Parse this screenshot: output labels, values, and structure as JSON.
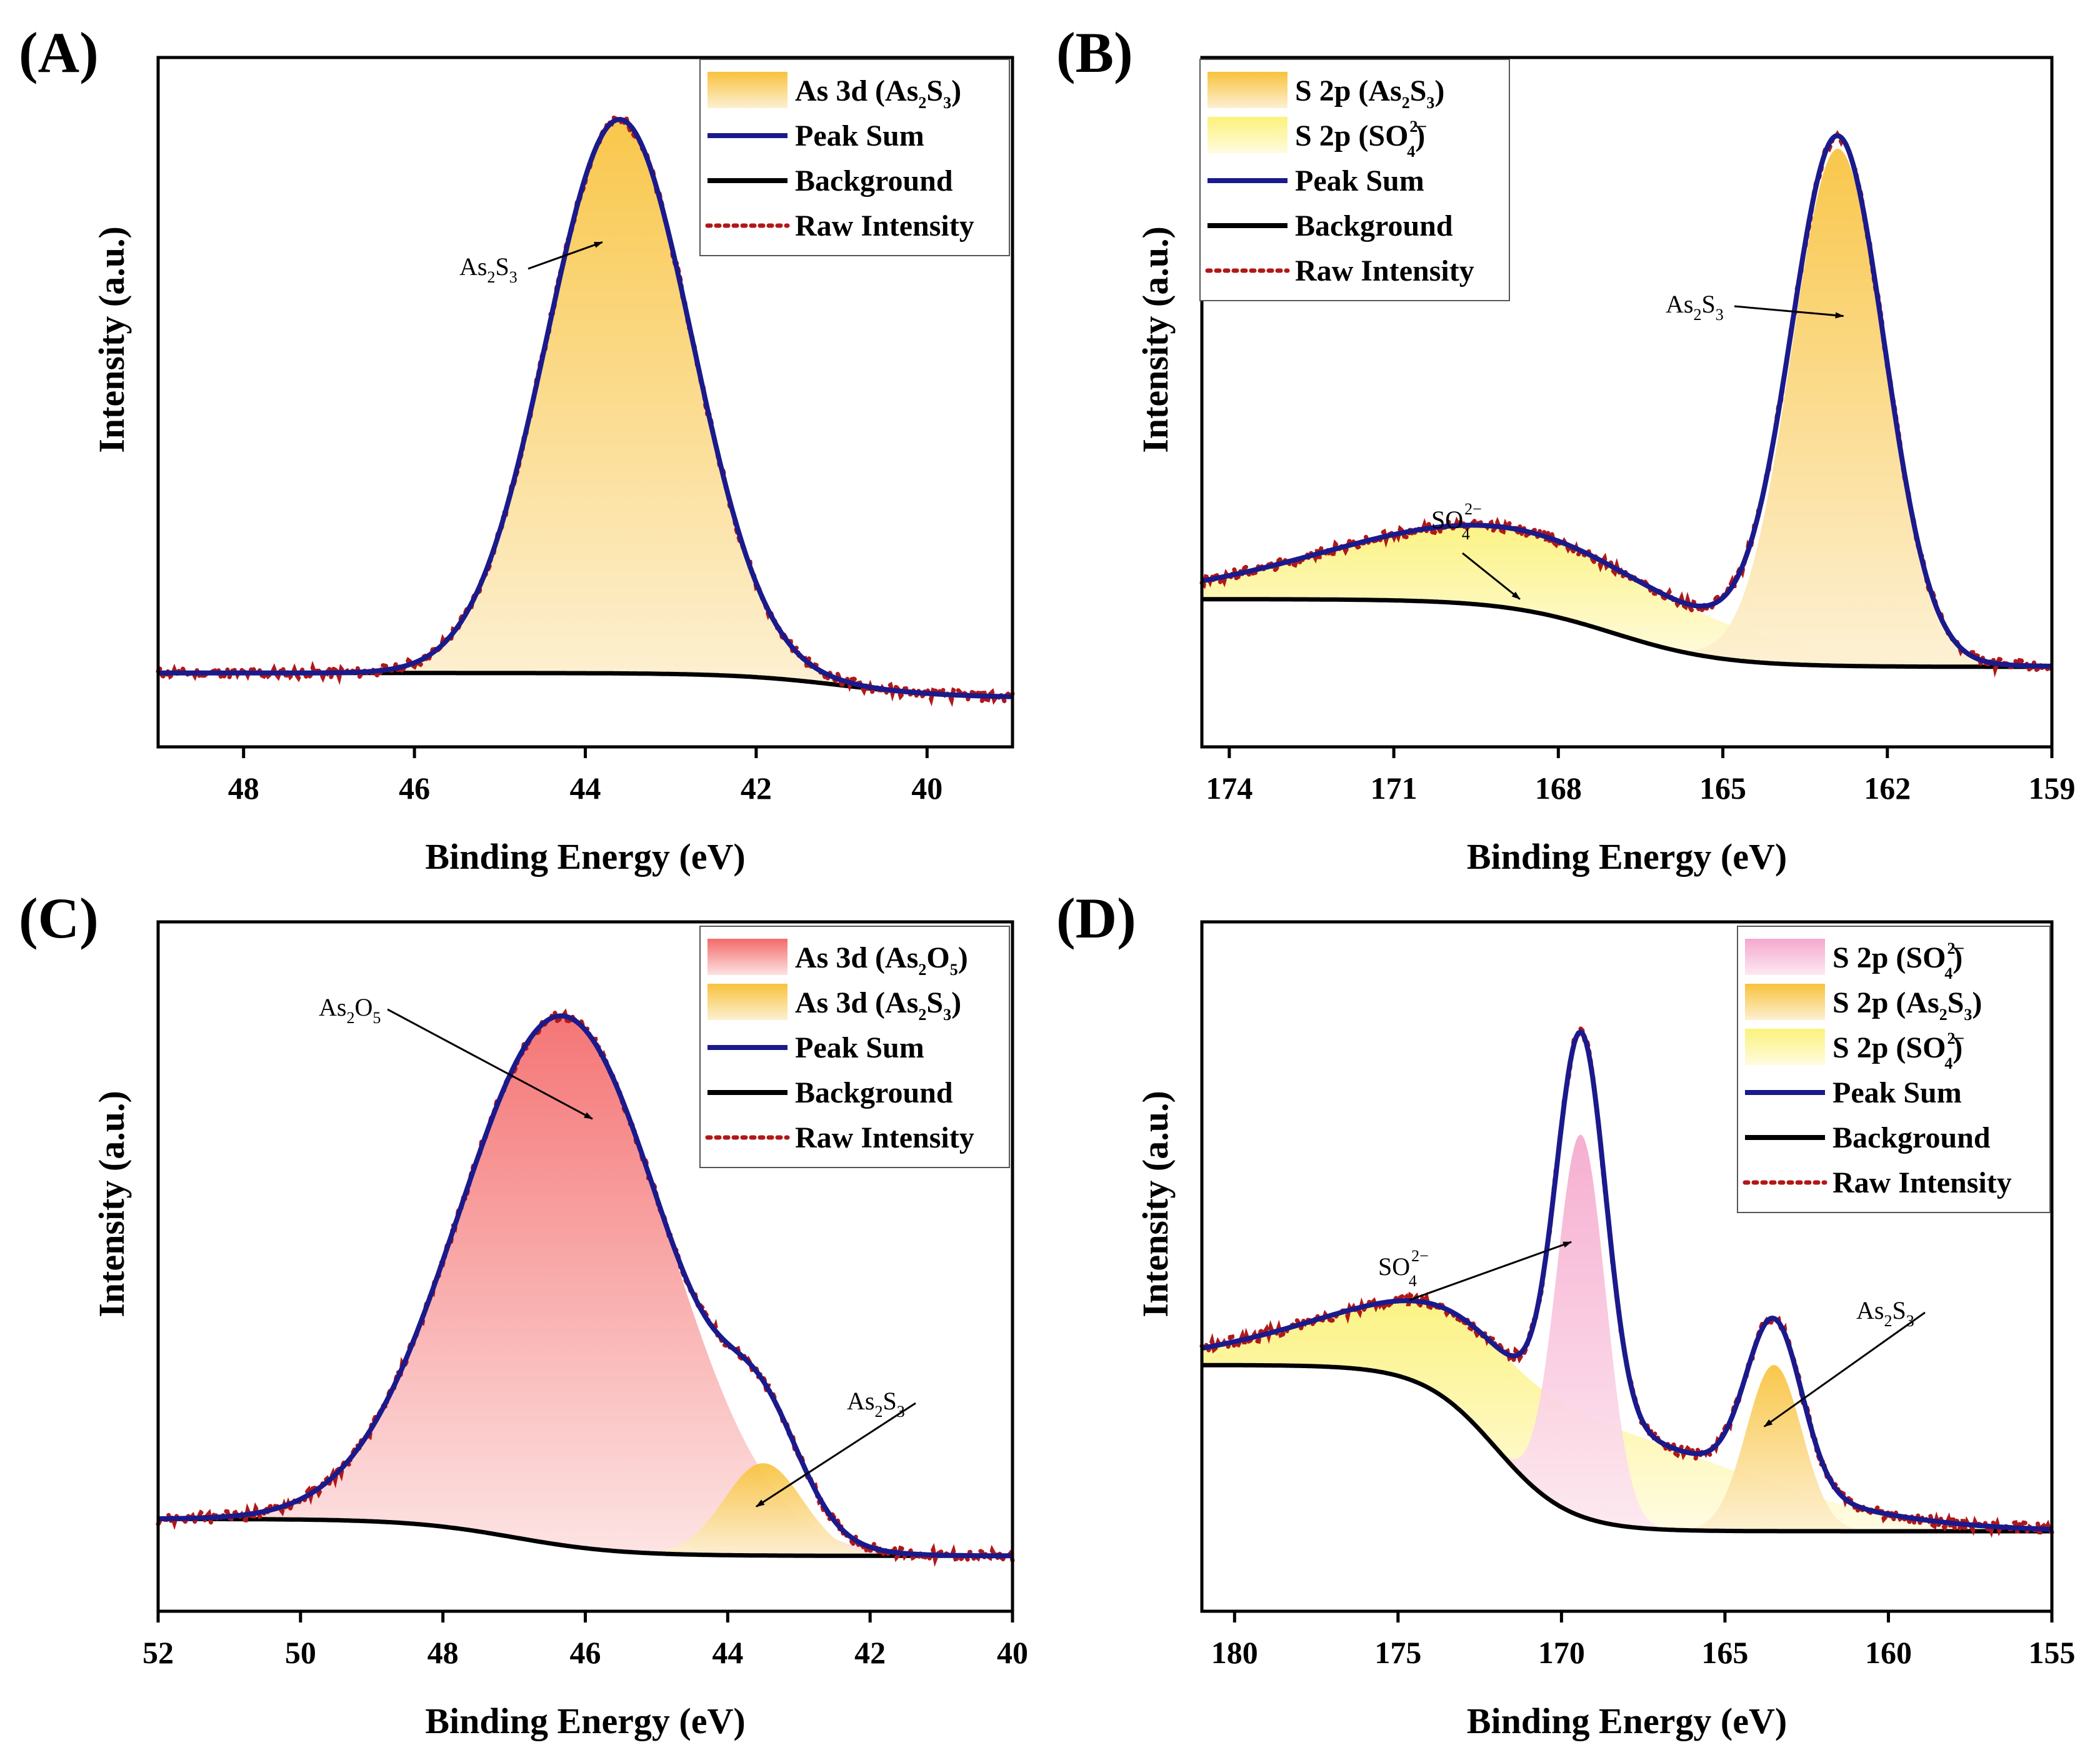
{
  "figure": {
    "panels": [
      "A",
      "B",
      "C",
      "D"
    ]
  },
  "colors": {
    "peak_sum": "#1a1a8c",
    "background": "#000000",
    "raw": "#b01818",
    "as2s3_top": "#f8c23c",
    "as2s3_bottom": "#fdf0d2",
    "so4_top": "#fbf27a",
    "so4_bottom": "#fffbe0",
    "as2o5_top": "#f46a6a",
    "as2o5_bottom": "#fde2e2",
    "so4_pink_top": "#f5a8cc",
    "so4_pink_bottom": "#fde8f2"
  },
  "chart_data": [
    {
      "panel": "A",
      "label": "(A)",
      "type": "line",
      "xlabel": "Binding Energy (eV)",
      "ylabel": "Intensity (a.u.)",
      "xlim": [
        49,
        39
      ],
      "ylim": [
        0,
        1.12
      ],
      "xticks": [
        48,
        46,
        44,
        42,
        40
      ],
      "background": {
        "y_left": 0.12,
        "y_right": 0.08,
        "x_center": 41,
        "width": 2.5
      },
      "components": [
        {
          "name": "As 3d (As2S3)",
          "center": 43.6,
          "height": 0.9,
          "width": 0.85,
          "fill": "as2s3"
        }
      ],
      "legend": [
        {
          "kind": "fill",
          "fill": "as2s3",
          "text": "As 3d (As",
          "sub1": "2",
          "mid": "S",
          "sub2": "3",
          "end": ")"
        },
        {
          "kind": "line",
          "style": "peak_sum",
          "text": "Peak Sum"
        },
        {
          "kind": "line",
          "style": "background",
          "text": "Background"
        },
        {
          "kind": "line",
          "style": "raw",
          "text": "Raw Intensity"
        }
      ],
      "annotations": [
        {
          "text": "As",
          "sub1": "2",
          "mid": "S",
          "sub2": "3",
          "end": "",
          "target_x": 43.8,
          "target_y": 0.82
        }
      ]
    },
    {
      "panel": "B",
      "label": "(B)",
      "type": "line",
      "xlabel": "Binding Energy (eV)",
      "ylabel": "Intensity (a.u.)",
      "xlim": [
        174.5,
        159
      ],
      "ylim": [
        0,
        1.12
      ],
      "xticks": [
        174,
        171,
        168,
        165,
        162,
        159
      ],
      "background": {
        "y_left": 0.24,
        "y_right": 0.13,
        "x_center": 167,
        "width": 4
      },
      "components": [
        {
          "name": "S 2p (SO4 2-)",
          "center": 169.0,
          "height": 0.13,
          "width": 3.2,
          "fill": "so4"
        },
        {
          "name": "S 2p (As2S3)",
          "center": 162.9,
          "height": 0.84,
          "width": 0.85,
          "fill": "as2s3"
        }
      ],
      "legend": [
        {
          "kind": "fill",
          "fill": "as2s3",
          "text": "S 2p (As",
          "sub1": "2",
          "mid": "S",
          "sub2": "3",
          "end": ")"
        },
        {
          "kind": "fill",
          "fill": "so4",
          "text": "S 2p (SO",
          "sub1": "4",
          "sup": "2−",
          "end": ")"
        },
        {
          "kind": "line",
          "style": "peak_sum",
          "text": "Peak Sum"
        },
        {
          "kind": "line",
          "style": "background",
          "text": "Background"
        },
        {
          "kind": "line",
          "style": "raw",
          "text": "Raw Intensity"
        }
      ],
      "annotations": [
        {
          "text": "As",
          "sub1": "2",
          "mid": "S",
          "sub2": "3",
          "end": "",
          "target_x": 162.8,
          "target_y": 0.7
        },
        {
          "text": "SO",
          "sub1": "4",
          "sup": "2−",
          "target_x": 168.7,
          "target_y": 0.24
        }
      ]
    },
    {
      "panel": "C",
      "label": "(C)",
      "type": "line",
      "xlabel": "Binding Energy (eV)",
      "ylabel": "Intensity (a.u.)",
      "xlim": [
        52,
        40
      ],
      "ylim": [
        0,
        1.12
      ],
      "xticks": [
        52,
        50,
        48,
        46,
        44,
        42,
        40
      ],
      "background": {
        "y_left": 0.15,
        "y_right": 0.09,
        "x_center": 47,
        "width": 3
      },
      "components": [
        {
          "name": "As 3d (As2O5)",
          "center": 46.3,
          "height": 0.86,
          "width": 1.45,
          "fill": "as2o5"
        },
        {
          "name": "As 3d (As2S3)",
          "center": 43.5,
          "height": 0.15,
          "width": 0.55,
          "fill": "as2s3"
        }
      ],
      "legend": [
        {
          "kind": "fill",
          "fill": "as2o5",
          "text": "As 3d (As",
          "sub1": "2",
          "mid": "O",
          "sub2": "5",
          "end": ")"
        },
        {
          "kind": "fill",
          "fill": "as2s3",
          "text": "As 3d (As",
          "sub1": "2",
          "mid": "S",
          "sub2": "3",
          "end": ")"
        },
        {
          "kind": "line",
          "style": "peak_sum",
          "text": "Peak Sum"
        },
        {
          "kind": "line",
          "style": "background",
          "text": "Background"
        },
        {
          "kind": "line",
          "style": "raw",
          "text": "Raw Intensity"
        }
      ],
      "annotations": [
        {
          "text": "As",
          "sub1": "2",
          "mid": "O",
          "sub2": "5",
          "end": "",
          "target_x": 45.9,
          "target_y": 0.8
        },
        {
          "text": "As",
          "sub1": "2",
          "mid": "S",
          "sub2": "3",
          "end": "",
          "target_x": 43.6,
          "target_y": 0.17
        }
      ]
    },
    {
      "panel": "D",
      "label": "(D)",
      "type": "line",
      "xlabel": "Binding Energy (eV)",
      "ylabel": "Intensity (a.u.)",
      "xlim": [
        181,
        155
      ],
      "ylim": [
        0,
        1.12
      ],
      "xticks": [
        180,
        175,
        170,
        165,
        160,
        155
      ],
      "background": {
        "y_left": 0.4,
        "y_right": 0.13,
        "x_center": 172,
        "width": 4.5
      },
      "components": [
        {
          "name": "S 2p (SO4 2-) broad",
          "center": 170.5,
          "height": 0.17,
          "width": 5.5,
          "fill": "so4"
        },
        {
          "name": "S 2p (SO4 2-)",
          "center": 169.4,
          "height": 0.62,
          "width": 0.75,
          "fill": "so4_pink"
        },
        {
          "name": "S 2p (As2S3)",
          "center": 163.5,
          "height": 0.27,
          "width": 0.85,
          "fill": "as2s3"
        }
      ],
      "legend": [
        {
          "kind": "fill",
          "fill": "so4_pink",
          "text": "S 2p (SO",
          "sub1": "4",
          "sup": "2−",
          "end": ")"
        },
        {
          "kind": "fill",
          "fill": "as2s3",
          "text": "S 2p (As",
          "sub1": "2",
          "mid": "S",
          "sub2": "3",
          "end": ")"
        },
        {
          "kind": "fill",
          "fill": "so4",
          "text": "S 2p (SO",
          "sub1": "4",
          "sup": "2−",
          "end": ")"
        },
        {
          "kind": "line",
          "style": "peak_sum",
          "text": "Peak Sum"
        },
        {
          "kind": "line",
          "style": "background",
          "text": "Background"
        },
        {
          "kind": "line",
          "style": "raw",
          "text": "Raw Intensity"
        }
      ],
      "annotations": [
        {
          "text": "SO",
          "sub1": "4",
          "sup": "2−",
          "target_x": 169.7,
          "target_y": 0.6
        },
        {
          "text": "As",
          "sub1": "2",
          "mid": "S",
          "sub2": "3",
          "end": "",
          "target_x": 163.8,
          "target_y": 0.3
        }
      ]
    }
  ]
}
